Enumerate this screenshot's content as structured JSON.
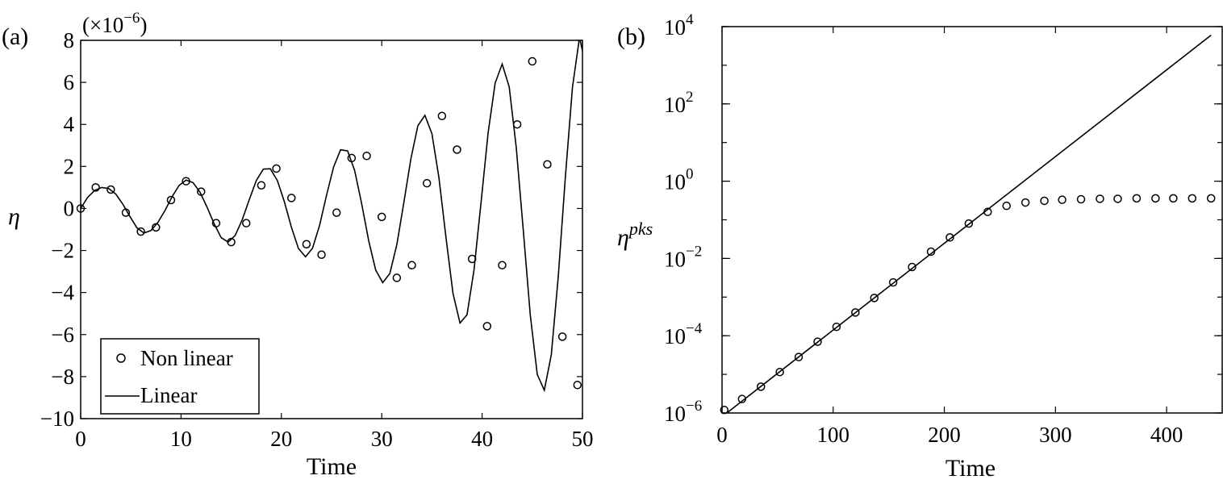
{
  "chart_data": [
    {
      "type": "line",
      "panel_label": "(a)",
      "xlabel": "Time",
      "ylabel": "η",
      "y_multiplier_base": "(×10",
      "y_multiplier_exp": "−6",
      "y_multiplier_close": ")",
      "xlim": [
        0,
        50
      ],
      "ylim": [
        -10,
        8
      ],
      "xticks": [
        0,
        10,
        20,
        30,
        40,
        50
      ],
      "yticks": [
        8,
        6,
        4,
        2,
        0,
        -2,
        -4,
        -6,
        -8,
        -10
      ],
      "ytick_labels": [
        "8",
        "6",
        "4",
        "2",
        "0",
        "−2",
        "−4",
        "−6",
        "−8",
        "−10"
      ],
      "grid": false,
      "legend_position": "bottom-left",
      "series": [
        {
          "name": "Non linear",
          "style": "open-circle markers",
          "x": [
            0,
            1.5,
            3,
            4.5,
            6,
            7.5,
            9,
            10.5,
            12,
            13.5,
            15,
            16.5,
            18,
            19.5,
            21,
            22.5,
            24,
            25.5,
            27,
            28.5,
            30,
            31.5,
            33,
            34.5,
            36,
            37.5,
            39,
            40.5,
            42,
            43.5,
            45,
            46.5,
            48,
            49.5
          ],
          "y": [
            0,
            1.0,
            0.9,
            -0.2,
            -1.1,
            -0.9,
            0.4,
            1.3,
            0.8,
            -0.7,
            -1.6,
            -0.7,
            1.1,
            1.9,
            0.5,
            -1.7,
            -2.2,
            -0.2,
            2.4,
            2.5,
            -0.4,
            -3.3,
            -2.7,
            1.2,
            4.4,
            2.8,
            -2.4,
            -5.6,
            -2.7,
            4.0,
            7.0,
            2.1,
            -6.1,
            -8.4
          ]
        },
        {
          "name": "Linear",
          "style": "solid line",
          "x": [
            0,
            0.7,
            1.4,
            2.1,
            2.8,
            3.5,
            4.2,
            4.9,
            5.6,
            6.3,
            7.0,
            7.7,
            8.4,
            9.1,
            9.8,
            10.5,
            11.2,
            11.9,
            12.6,
            13.3,
            14.0,
            14.7,
            15.4,
            16.1,
            16.8,
            17.5,
            18.2,
            18.9,
            19.6,
            20.3,
            21.0,
            21.7,
            22.4,
            23.1,
            23.8,
            24.5,
            25.2,
            25.9,
            26.6,
            27.3,
            28.0,
            28.7,
            29.4,
            30.1,
            30.8,
            31.5,
            32.2,
            32.9,
            33.6,
            34.3,
            35.0,
            35.7,
            36.4,
            37.1,
            37.8,
            38.5,
            39.2,
            39.9,
            40.6,
            41.3,
            42.0,
            42.7,
            43.4,
            44.1,
            44.8,
            45.5,
            46.2,
            46.9,
            47.6,
            48.3,
            49.0,
            49.7,
            50.0
          ],
          "y": [
            0.0,
            0.53,
            0.86,
            1.0,
            0.95,
            0.69,
            0.21,
            -0.38,
            -0.92,
            -1.17,
            -1.05,
            -0.66,
            -0.1,
            0.55,
            1.09,
            1.35,
            1.23,
            0.77,
            0.06,
            -0.73,
            -1.39,
            -1.6,
            -1.28,
            -0.53,
            0.42,
            1.33,
            1.87,
            1.89,
            1.33,
            0.32,
            -0.89,
            -1.9,
            -2.3,
            -1.89,
            -0.81,
            0.63,
            1.97,
            2.79,
            2.74,
            1.81,
            0.23,
            -1.53,
            -2.93,
            -3.53,
            -3.1,
            -1.72,
            0.28,
            2.36,
            3.94,
            4.43,
            3.56,
            1.46,
            -1.37,
            -4.04,
            -5.45,
            -5.06,
            -2.92,
            0.32,
            3.61,
            5.97,
            6.87,
            5.78,
            2.92,
            -1.01,
            -5.06,
            -7.9,
            -8.65,
            -6.96,
            -3.2,
            1.54,
            5.76,
            8.13,
            7.51
          ]
        }
      ]
    },
    {
      "type": "line",
      "panel_label": "(b)",
      "xlabel": "Time",
      "ylabel_base": "η",
      "ylabel_sup": "pks",
      "xlim": [
        0,
        450
      ],
      "yscale": "log",
      "ylim": [
        1e-06,
        10000.0
      ],
      "xticks": [
        0,
        100,
        200,
        300,
        400
      ],
      "ytick_exponents": [
        4,
        2,
        0,
        -2,
        -4,
        -6
      ],
      "ytick_base": "10",
      "ytick_exponent_labels": [
        "4",
        "2",
        "0",
        "−2",
        "−4",
        "−6"
      ],
      "grid": false,
      "series": [
        {
          "name": "Non linear",
          "style": "open-circle markers",
          "x": [
            2,
            18,
            35,
            52,
            69,
            86,
            103,
            120,
            137,
            154,
            171,
            188,
            205,
            222,
            239,
            256,
            273,
            290,
            306,
            323,
            340,
            356,
            373,
            390,
            406,
            423,
            440
          ],
          "y": [
            1.2e-06,
            2.3e-06,
            4.8e-06,
            1.15e-05,
            2.8e-05,
            7e-05,
            0.00017,
            0.0004,
            0.00095,
            0.0024,
            0.006,
            0.015,
            0.035,
            0.08,
            0.16,
            0.23,
            0.28,
            0.31,
            0.33,
            0.34,
            0.35,
            0.35,
            0.36,
            0.36,
            0.36,
            0.36,
            0.36
          ]
        },
        {
          "name": "Linear",
          "style": "solid line",
          "x": [
            0,
            440
          ],
          "y": [
            8e-07,
            6000
          ]
        }
      ]
    }
  ],
  "legend": {
    "items": [
      "Non linear",
      "Linear"
    ]
  }
}
